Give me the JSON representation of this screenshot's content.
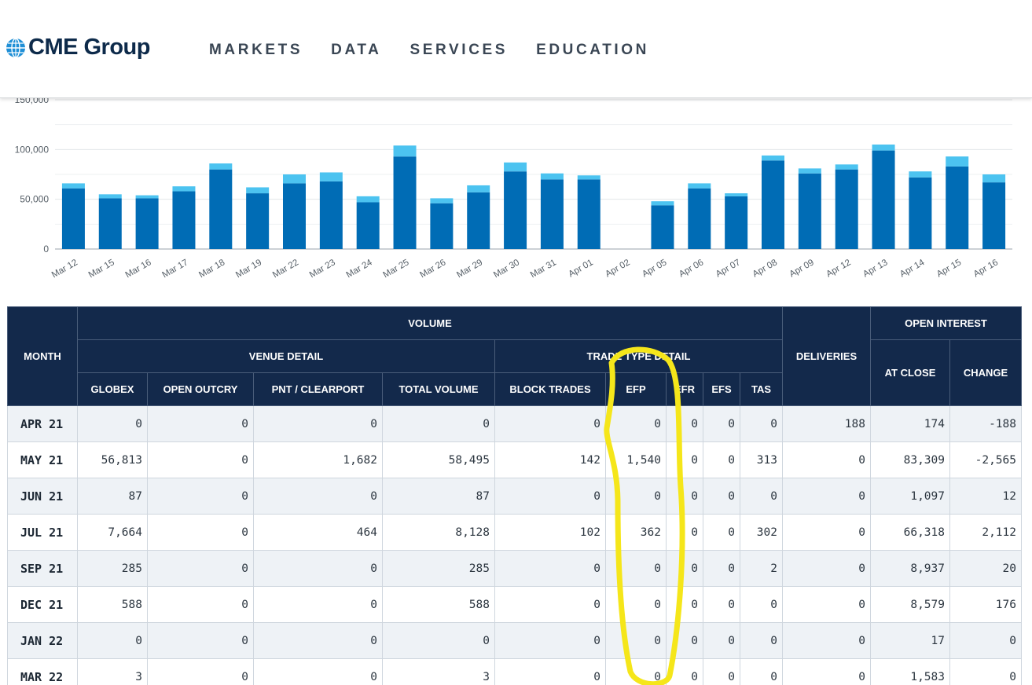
{
  "header": {
    "logo_text": "CME Group",
    "logo_icon": "globe-icon",
    "nav": [
      "MARKETS",
      "DATA",
      "SERVICES",
      "EDUCATION"
    ]
  },
  "colors": {
    "navy": "#13294b",
    "bar_dark": "#006cb5",
    "bar_light": "#4cc3f0",
    "highlight": "#f5e61a"
  },
  "chart_data": {
    "type": "bar",
    "stacked": true,
    "title": "",
    "xlabel": "",
    "ylabel": "",
    "ylim": [
      0,
      150000
    ],
    "yticks": [
      "0",
      "50,000",
      "100,000",
      "150,000"
    ],
    "ytick_values": [
      0,
      50000,
      100000,
      150000
    ],
    "grid": true,
    "categories": [
      "Mar 12",
      "Mar 15",
      "Mar 16",
      "Mar 17",
      "Mar 18",
      "Mar 19",
      "Mar 22",
      "Mar 23",
      "Mar 24",
      "Mar 25",
      "Mar 26",
      "Mar 29",
      "Mar 30",
      "Mar 31",
      "Apr 01",
      "Apr 02",
      "Apr 05",
      "Apr 06",
      "Apr 07",
      "Apr 08",
      "Apr 09",
      "Apr 12",
      "Apr 13",
      "Apr 14",
      "Apr 15",
      "Apr 16"
    ],
    "series": [
      {
        "values": [
          61000,
          51000,
          51000,
          58000,
          80000,
          56000,
          66000,
          68000,
          47000,
          93000,
          46000,
          57000,
          78000,
          70000,
          70000,
          0,
          44000,
          61000,
          53000,
          89000,
          76000,
          80000,
          99000,
          72000,
          83000,
          67000
        ]
      },
      {
        "values": [
          5000,
          4000,
          3000,
          5000,
          6000,
          6000,
          9000,
          9000,
          6000,
          11000,
          5000,
          7000,
          9000,
          6000,
          4000,
          0,
          4000,
          5000,
          3000,
          5000,
          5000,
          5000,
          6000,
          6000,
          10000,
          8000
        ]
      }
    ]
  },
  "table": {
    "header_top": {
      "month": "MONTH",
      "volume": "VOLUME",
      "deliveries": "DELIVERIES",
      "open_interest": "OPEN INTEREST"
    },
    "header_mid": {
      "venue": "VENUE DETAIL",
      "trade_type": "TRADE TYPE DETAIL",
      "at_close": "AT CLOSE",
      "change": "CHANGE"
    },
    "columns": [
      "GLOBEX",
      "OPEN OUTCRY",
      "PNT / CLEARPORT",
      "TOTAL VOLUME",
      "BLOCK TRADES",
      "EFP",
      "EFR",
      "EFS",
      "TAS"
    ],
    "rows": [
      {
        "month": "APR 21",
        "cells": [
          "0",
          "0",
          "0",
          "0",
          "0",
          "0",
          "0",
          "0",
          "0",
          "188",
          "174",
          "-188"
        ]
      },
      {
        "month": "MAY 21",
        "cells": [
          "56,813",
          "0",
          "1,682",
          "58,495",
          "142",
          "1,540",
          "0",
          "0",
          "313",
          "0",
          "83,309",
          "-2,565"
        ]
      },
      {
        "month": "JUN 21",
        "cells": [
          "87",
          "0",
          "0",
          "87",
          "0",
          "0",
          "0",
          "0",
          "0",
          "0",
          "1,097",
          "12"
        ]
      },
      {
        "month": "JUL 21",
        "cells": [
          "7,664",
          "0",
          "464",
          "8,128",
          "102",
          "362",
          "0",
          "0",
          "302",
          "0",
          "66,318",
          "2,112"
        ]
      },
      {
        "month": "SEP 21",
        "cells": [
          "285",
          "0",
          "0",
          "285",
          "0",
          "0",
          "0",
          "0",
          "2",
          "0",
          "8,937",
          "20"
        ]
      },
      {
        "month": "DEC 21",
        "cells": [
          "588",
          "0",
          "0",
          "588",
          "0",
          "0",
          "0",
          "0",
          "0",
          "0",
          "8,579",
          "176"
        ]
      },
      {
        "month": "JAN 22",
        "cells": [
          "0",
          "0",
          "0",
          "0",
          "0",
          "0",
          "0",
          "0",
          "0",
          "0",
          "17",
          "0"
        ]
      },
      {
        "month": "MAR 22",
        "cells": [
          "3",
          "0",
          "0",
          "3",
          "0",
          "0",
          "0",
          "0",
          "0",
          "0",
          "1,583",
          "0"
        ]
      }
    ]
  }
}
